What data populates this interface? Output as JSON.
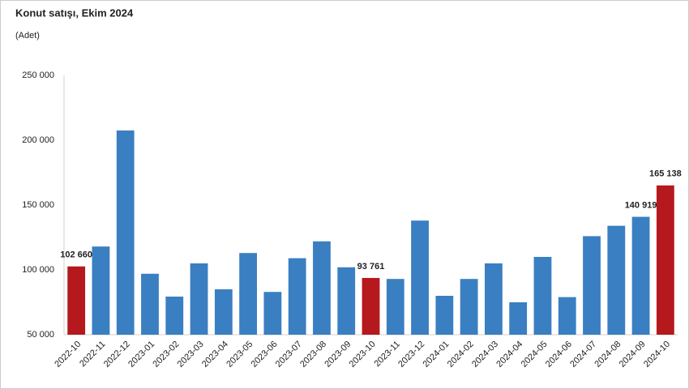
{
  "chart_data": {
    "type": "bar",
    "title": "Konut satışı, Ekim 2024",
    "subtitle": "(Adet)",
    "categories": [
      "2022-10",
      "2022-11",
      "2022-12",
      "2023-01",
      "2023-02",
      "2023-03",
      "2023-04",
      "2023-05",
      "2023-06",
      "2023-07",
      "2023-08",
      "2023-09",
      "2023-10",
      "2023-11",
      "2023-12",
      "2024-01",
      "2024-02",
      "2024-03",
      "2024-04",
      "2024-05",
      "2024-06",
      "2024-07",
      "2024-08",
      "2024-09",
      "2024-10"
    ],
    "values": [
      102660,
      118000,
      207500,
      97000,
      79400,
      105000,
      85000,
      113000,
      83000,
      109000,
      122000,
      102000,
      93761,
      93000,
      138000,
      80000,
      93000,
      105000,
      75000,
      110000,
      79000,
      126000,
      134000,
      140919,
      165138
    ],
    "value_labels": [
      "102 660",
      null,
      null,
      null,
      null,
      null,
      null,
      null,
      null,
      null,
      null,
      null,
      "93 761",
      null,
      null,
      null,
      null,
      null,
      null,
      null,
      null,
      null,
      null,
      "140 919",
      "165 138"
    ],
    "colors": [
      "#b5191d",
      "#3a7fc1",
      "#3a7fc1",
      "#3a7fc1",
      "#3a7fc1",
      "#3a7fc1",
      "#3a7fc1",
      "#3a7fc1",
      "#3a7fc1",
      "#3a7fc1",
      "#3a7fc1",
      "#3a7fc1",
      "#b5191d",
      "#3a7fc1",
      "#3a7fc1",
      "#3a7fc1",
      "#3a7fc1",
      "#3a7fc1",
      "#3a7fc1",
      "#3a7fc1",
      "#3a7fc1",
      "#3a7fc1",
      "#3a7fc1",
      "#3a7fc1",
      "#b5191d"
    ],
    "ylim": [
      50000,
      250000
    ],
    "yticks": [
      {
        "value": 50000,
        "label": "50 000"
      },
      {
        "value": 100000,
        "label": "100 000"
      },
      {
        "value": 150000,
        "label": "150 000"
      },
      {
        "value": 200000,
        "label": "200 000"
      },
      {
        "value": 250000,
        "label": "250 000"
      }
    ],
    "grid": false
  }
}
